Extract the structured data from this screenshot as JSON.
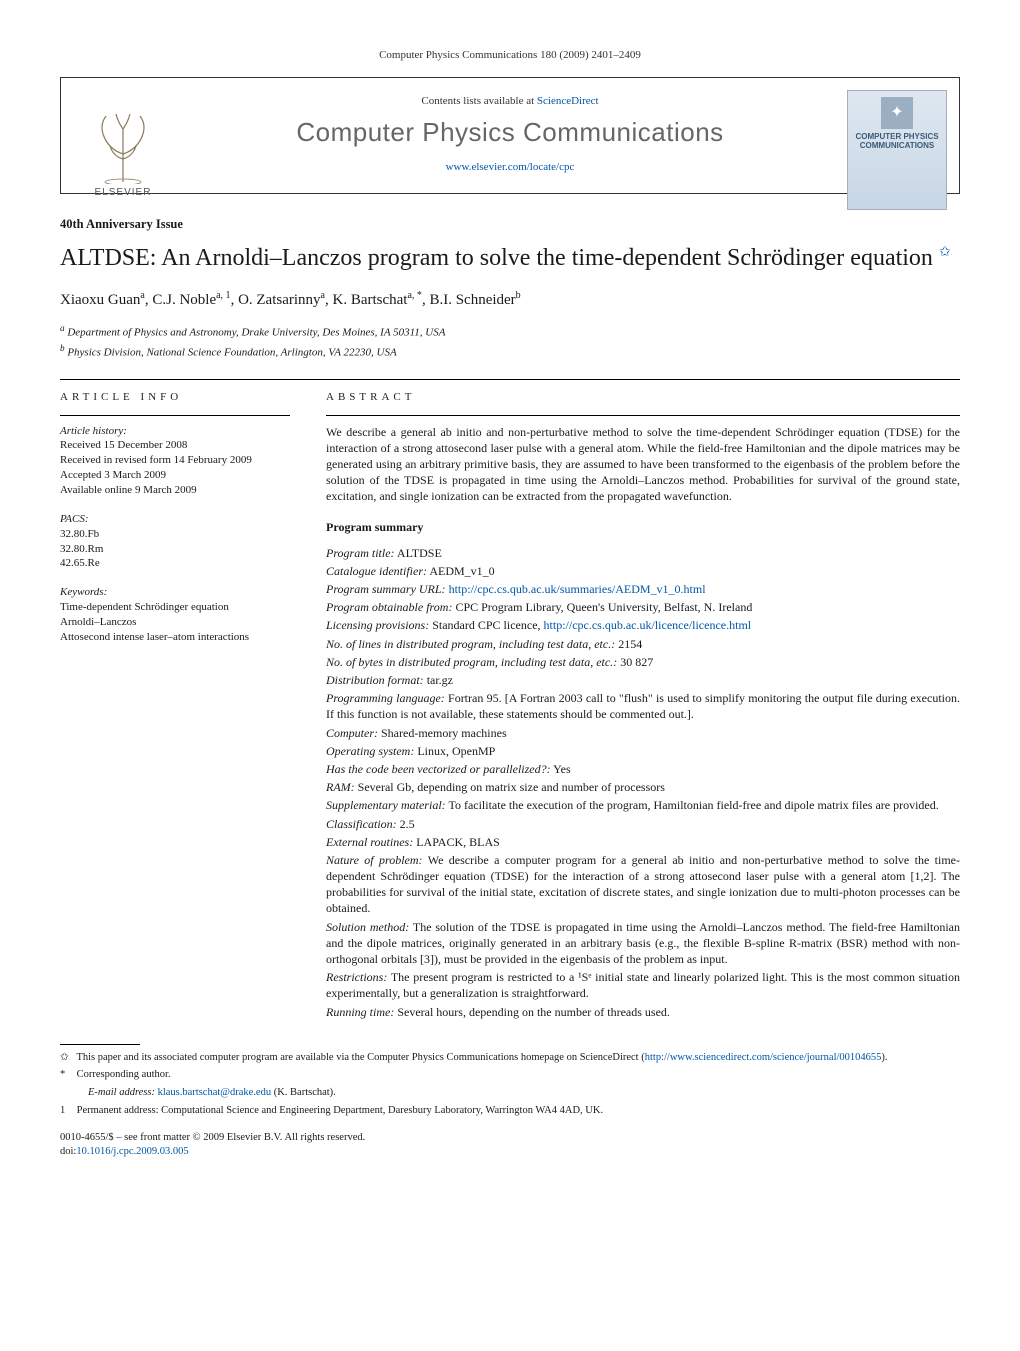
{
  "citation": "Computer Physics Communications 180 (2009) 2401–2409",
  "header": {
    "contents_prefix": "Contents lists available at ",
    "contents_link": "ScienceDirect",
    "journal_name": "Computer Physics Communications",
    "journal_url": "www.elsevier.com/locate/cpc",
    "publisher": "ELSEVIER",
    "cover_line1": "COMPUTER PHYSICS",
    "cover_line2": "COMMUNICATIONS"
  },
  "issue_label": "40th Anniversary Issue",
  "title_main": "ALTDSE: An Arnoldi–Lanczos program to solve the time-dependent Schrödinger equation",
  "authors_html": "Xiaoxu Guan",
  "authors": [
    {
      "name": "Xiaoxu Guan",
      "sup": "a"
    },
    {
      "name": "C.J. Noble",
      "sup": "a, 1"
    },
    {
      "name": "O. Zatsarinny",
      "sup": "a"
    },
    {
      "name": "K. Bartschat",
      "sup": "a, *"
    },
    {
      "name": "B.I. Schneider",
      "sup": "b"
    }
  ],
  "affiliations": [
    {
      "sym": "a",
      "text": "Department of Physics and Astronomy, Drake University, Des Moines, IA 50311, USA"
    },
    {
      "sym": "b",
      "text": "Physics Division, National Science Foundation, Arlington, VA 22230, USA"
    }
  ],
  "article_info": {
    "heading": "ARTICLE INFO",
    "history_h": "Article history:",
    "history": [
      "Received 15 December 2008",
      "Received in revised form 14 February 2009",
      "Accepted 3 March 2009",
      "Available online 9 March 2009"
    ],
    "pacs_h": "PACS:",
    "pacs": [
      "32.80.Fb",
      "32.80.Rm",
      "42.65.Re"
    ],
    "keywords_h": "Keywords:",
    "keywords": [
      "Time-dependent Schrödinger equation",
      "Arnoldi–Lanczos",
      "Attosecond intense laser–atom interactions"
    ]
  },
  "abstract": {
    "heading": "ABSTRACT",
    "text": "We describe a general ab initio and non-perturbative method to solve the time-dependent Schrödinger equation (TDSE) for the interaction of a strong attosecond laser pulse with a general atom. While the field-free Hamiltonian and the dipole matrices may be generated using an arbitrary primitive basis, they are assumed to have been transformed to the eigenbasis of the problem before the solution of the TDSE is propagated in time using the Arnoldi–Lanczos method. Probabilities for survival of the ground state, excitation, and single ionization can be extracted from the propagated wavefunction."
  },
  "program_summary": {
    "heading": "Program summary",
    "items": [
      {
        "label": "Program title:",
        "value": "ALTDSE"
      },
      {
        "label": "Catalogue identifier:",
        "value": "AEDM_v1_0"
      },
      {
        "label": "Program summary URL:",
        "link": "http://cpc.cs.qub.ac.uk/summaries/AEDM_v1_0.html"
      },
      {
        "label": "Program obtainable from:",
        "value": "CPC Program Library, Queen's University, Belfast, N. Ireland"
      },
      {
        "label": "Licensing provisions:",
        "value_prefix": "Standard CPC licence, ",
        "link": "http://cpc.cs.qub.ac.uk/licence/licence.html"
      },
      {
        "label": "No. of lines in distributed program, including test data, etc.:",
        "value": "2154"
      },
      {
        "label": "No. of bytes in distributed program, including test data, etc.:",
        "value": "30 827"
      },
      {
        "label": "Distribution format:",
        "value": "tar.gz"
      },
      {
        "label": "Programming language:",
        "value": "Fortran 95. [A Fortran 2003 call to \"flush\" is used to simplify monitoring the output file during execution. If this function is not available, these statements should be commented out.]."
      },
      {
        "label": "Computer:",
        "value": "Shared-memory machines"
      },
      {
        "label": "Operating system:",
        "value": "Linux, OpenMP"
      },
      {
        "label": "Has the code been vectorized or parallelized?:",
        "value": "Yes"
      },
      {
        "label": "RAM:",
        "value": "Several Gb, depending on matrix size and number of processors"
      },
      {
        "label": "Supplementary material:",
        "value": "To facilitate the execution of the program, Hamiltonian field-free and dipole matrix files are provided."
      },
      {
        "label": "Classification:",
        "value": "2.5"
      },
      {
        "label": "External routines:",
        "value": "LAPACK, BLAS"
      },
      {
        "label": "Nature of problem:",
        "value": "We describe a computer program for a general ab initio and non-perturbative method to solve the time-dependent Schrödinger equation (TDSE) for the interaction of a strong attosecond laser pulse with a general atom [1,2]. The probabilities for survival of the initial state, excitation of discrete states, and single ionization due to multi-photon processes can be obtained."
      },
      {
        "label": "Solution method:",
        "value": "The solution of the TDSE is propagated in time using the Arnoldi–Lanczos method. The field-free Hamiltonian and the dipole matrices, originally generated in an arbitrary basis (e.g., the flexible B-spline R-matrix (BSR) method with non-orthogonal orbitals [3]), must be provided in the eigenbasis of the problem as input."
      },
      {
        "label": "Restrictions:",
        "value": "The present program is restricted to a ¹Sᵉ initial state and linearly polarized light. This is the most common situation experimentally, but a generalization is straightforward."
      },
      {
        "label": "Running time:",
        "value": "Several hours, depending on the number of threads used."
      }
    ]
  },
  "footnotes": {
    "star": {
      "sym": "✩",
      "text_before": "This paper and its associated computer program are available via the Computer Physics Communications homepage on ScienceDirect (",
      "link": "http://www.sciencedirect.com/science/journal/00104655",
      "text_after": ")."
    },
    "corr": {
      "sym": "*",
      "text": "Corresponding author."
    },
    "email": {
      "label": "E-mail address:",
      "link": "klaus.bartschat@drake.edu",
      "suffix": " (K. Bartschat)."
    },
    "perm": {
      "sym": "1",
      "text": "Permanent address: Computational Science and Engineering Department, Daresbury Laboratory, Warrington WA4 4AD, UK."
    }
  },
  "copyright": "0010-4655/$ – see front matter © 2009 Elsevier B.V. All rights reserved.",
  "doi_label": "doi:",
  "doi_link": "10.1016/j.cpc.2009.03.005"
}
